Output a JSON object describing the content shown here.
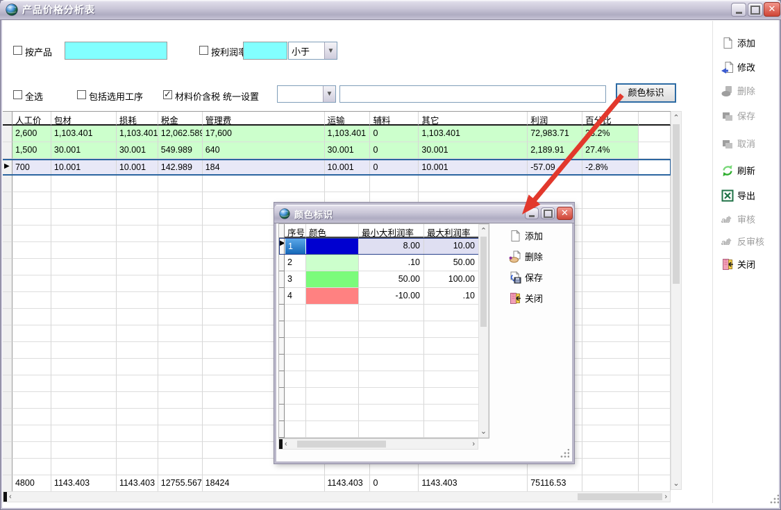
{
  "window": {
    "title": "产品价格分析表"
  },
  "filters": {
    "by_product_label": "按产品",
    "by_product_value": "",
    "by_profit_label": "按利润率",
    "by_profit_value": "",
    "profit_compare_value": "小于",
    "select_all_label": "全选",
    "include_process_label": "包括选用工序",
    "material_tax_label": "材料价含税",
    "material_tax_checked": true,
    "unified_label": "统一设置",
    "unified_select_value": "",
    "unified_text_value": "",
    "color_button_label": "颜色标识"
  },
  "table": {
    "headers": [
      "人工价",
      "包材",
      "损耗",
      "税金",
      "管理费",
      "运输",
      "辅料",
      "其它",
      "利润",
      "百分比"
    ],
    "rows": [
      {
        "current": false,
        "row_color": "green",
        "cells": [
          "2,600",
          "1,103.401",
          "1,103.401",
          "12,062.589",
          "17,600",
          "1,103.401",
          "0",
          "1,103.401",
          "72,983.71",
          "33.2%"
        ]
      },
      {
        "current": false,
        "row_color": "green",
        "cells": [
          "1,500",
          "30.001",
          "30.001",
          "549.989",
          "640",
          "30.001",
          "0",
          "30.001",
          "2,189.91",
          "27.4%"
        ]
      },
      {
        "current": true,
        "row_color": "selected",
        "cells": [
          "700",
          "10.001",
          "10.001",
          "142.989",
          "184",
          "10.001",
          "0",
          "10.001",
          "-57.09",
          "-2.8%"
        ]
      }
    ],
    "summary": [
      "4800",
      "1143.403",
      "1143.403",
      "12755.567",
      "18424",
      "1143.403",
      "0",
      "1143.403",
      "75116.53",
      ""
    ]
  },
  "toolbar": {
    "items": [
      {
        "label": "添加",
        "icon": "add-page-icon",
        "enabled": true
      },
      {
        "label": "修改",
        "icon": "modify-icon",
        "enabled": true
      },
      {
        "label": "删除",
        "icon": "delete-icon",
        "enabled": false
      },
      {
        "label": "保存",
        "icon": "save-icon",
        "enabled": false
      },
      {
        "label": "取消",
        "icon": "cancel-icon",
        "enabled": false
      },
      {
        "label": "刷新",
        "icon": "refresh-icon",
        "enabled": true
      },
      {
        "label": "导出",
        "icon": "export-excel-icon",
        "enabled": true
      },
      {
        "label": "审核",
        "icon": "audit-icon",
        "enabled": false
      },
      {
        "label": "反审核",
        "icon": "unaudit-icon",
        "enabled": false
      },
      {
        "label": "关闭",
        "icon": "close-door-icon",
        "enabled": true
      }
    ]
  },
  "dialog": {
    "title": "颜色标识",
    "grid": {
      "headers": [
        "序号",
        "颜色",
        "最小大利润率",
        "最大利润率"
      ],
      "rows": [
        {
          "no": "1",
          "color": "#0000D0",
          "min": "8.00",
          "max": "10.00",
          "selected": true,
          "current": true
        },
        {
          "no": "2",
          "color": "#CCFFCC",
          "min": ".10",
          "max": "50.00",
          "selected": false,
          "current": false
        },
        {
          "no": "3",
          "color": "#7BFB7B",
          "min": "50.00",
          "max": "100.00",
          "selected": false,
          "current": false
        },
        {
          "no": "4",
          "color": "#FF8181",
          "min": "-10.00",
          "max": ".10",
          "selected": false,
          "current": false
        }
      ]
    },
    "buttons": [
      {
        "label": "添加",
        "icon": "add-page-icon"
      },
      {
        "label": "删除",
        "icon": "delete-hand-icon"
      },
      {
        "label": "保存",
        "icon": "save-disk-icon"
      },
      {
        "label": "关闭",
        "icon": "close-door-icon"
      }
    ]
  },
  "annotation": {
    "arrow_color": "#E2382C"
  }
}
